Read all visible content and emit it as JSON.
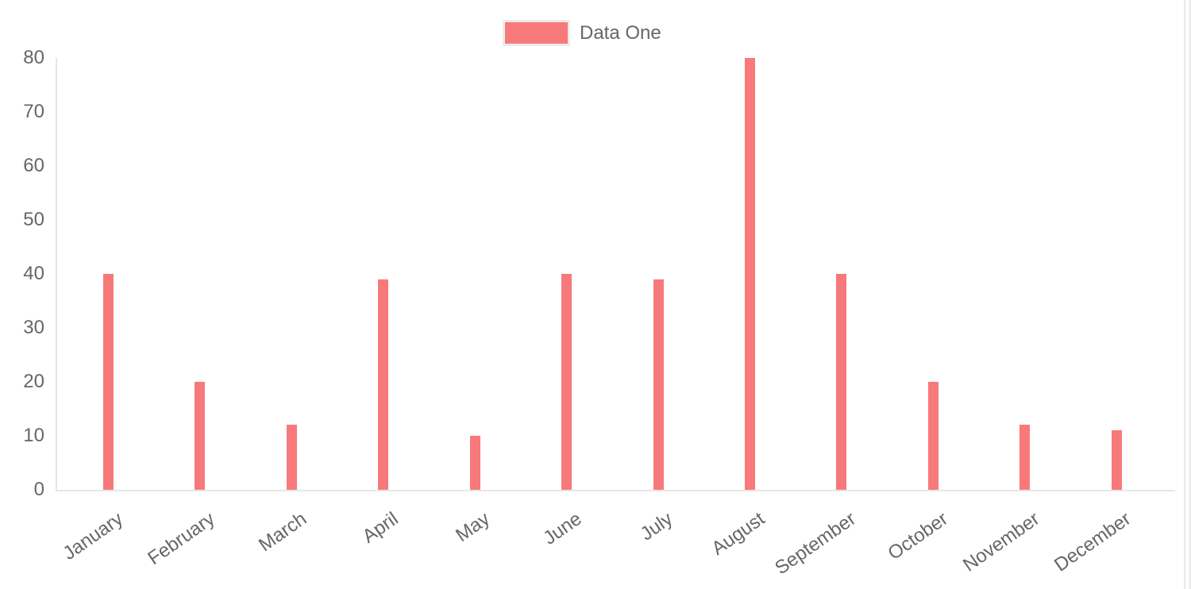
{
  "chart_data": {
    "type": "bar",
    "title": "",
    "categories": [
      "January",
      "February",
      "March",
      "April",
      "May",
      "June",
      "July",
      "August",
      "September",
      "October",
      "November",
      "December"
    ],
    "series": [
      {
        "name": "Data One",
        "color": "#f87979",
        "values": [
          40,
          20,
          12,
          39,
          10,
          40,
          39,
          80,
          40,
          20,
          12,
          11
        ]
      }
    ],
    "xlabel": "",
    "ylabel": "",
    "ylim": [
      0,
      80
    ],
    "yticks": [
      0,
      10,
      20,
      30,
      40,
      50,
      60,
      70,
      80
    ],
    "grid": false,
    "x_label_rotation_deg": -35,
    "legend_position": "top"
  },
  "legend": {
    "label": "Data One",
    "swatch_color": "#f87979",
    "swatch_border_color": "#ececec"
  },
  "colors": {
    "bar": "#f87979",
    "axis_line": "#e6e6e6",
    "tick_text": "#666666",
    "background": "#ffffff"
  }
}
